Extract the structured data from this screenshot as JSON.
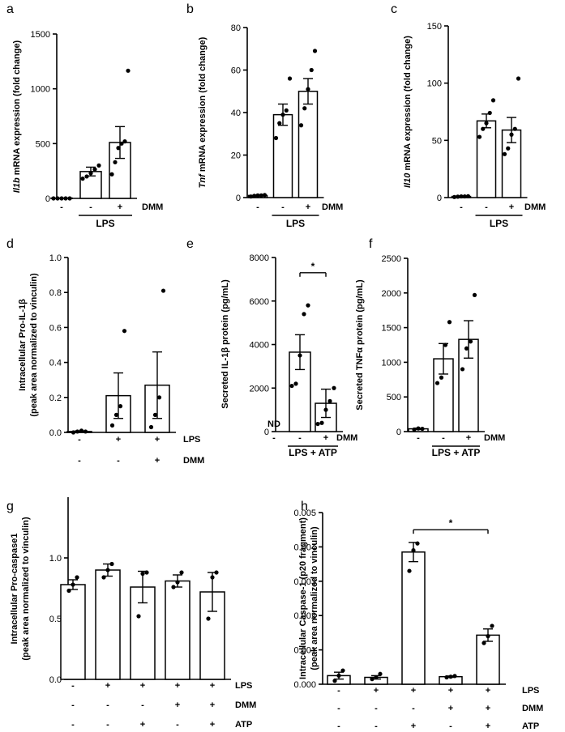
{
  "chart_data": [
    {
      "id": "a",
      "panel_label": "a",
      "type": "bar",
      "ylabel_italic": "Il1b",
      "ylabel_rest": " mRNA expression (fold change)",
      "ylim": [
        0,
        1500
      ],
      "yticks": [
        "0",
        "500",
        "1000",
        "1500"
      ],
      "ytick_values": [
        0,
        500,
        1000,
        1500
      ],
      "condition_rows": [
        {
          "label": "DMM",
          "marks": [
            "-",
            "-",
            "+"
          ]
        }
      ],
      "group_label": {
        "text": "LPS",
        "from": 1,
        "to": 2
      },
      "bars": [
        {
          "mean": 3,
          "sem": 0,
          "points": [
            0,
            0,
            0,
            0,
            0
          ]
        },
        {
          "mean": 245,
          "sem": 40,
          "points": [
            180,
            200,
            230,
            265,
            300
          ]
        },
        {
          "mean": 510,
          "sem": 145,
          "points": [
            220,
            330,
            460,
            500,
            520,
            1165
          ]
        }
      ]
    },
    {
      "id": "b",
      "panel_label": "b",
      "type": "bar",
      "ylabel_italic": "Tnf",
      "ylabel_rest": " mRNA expression (fold change)",
      "ylim": [
        0,
        80
      ],
      "yticks": [
        "0",
        "20",
        "40",
        "60",
        "80"
      ],
      "ytick_values": [
        0,
        20,
        40,
        60,
        80
      ],
      "condition_rows": [
        {
          "label": "DMM",
          "marks": [
            "-",
            "-",
            "+"
          ]
        }
      ],
      "group_label": {
        "text": "LPS",
        "from": 1,
        "to": 2
      },
      "bars": [
        {
          "mean": 1,
          "sem": 0.2,
          "points": [
            0.5,
            0.8,
            1,
            1,
            1.2
          ]
        },
        {
          "mean": 39,
          "sem": 5,
          "points": [
            28,
            35,
            39,
            41,
            56
          ]
        },
        {
          "mean": 50,
          "sem": 6,
          "points": [
            34,
            42,
            51,
            60,
            69
          ]
        }
      ]
    },
    {
      "id": "c",
      "panel_label": "c",
      "type": "bar",
      "ylabel_italic": "Il10",
      "ylabel_rest": " mRNA expression (fold change)",
      "ylim": [
        0,
        150
      ],
      "yticks": [
        "0",
        "50",
        "100",
        "150"
      ],
      "ytick_values": [
        0,
        50,
        100,
        150
      ],
      "condition_rows": [
        {
          "label": "DMM",
          "marks": [
            "-",
            "-",
            "+"
          ]
        }
      ],
      "group_label": {
        "text": "LPS",
        "from": 1,
        "to": 2
      },
      "bars": [
        {
          "mean": 1,
          "sem": 0.2,
          "points": [
            0.5,
            0.8,
            1,
            1,
            1.2
          ]
        },
        {
          "mean": 67,
          "sem": 6,
          "points": [
            53,
            60,
            65,
            74,
            85
          ]
        },
        {
          "mean": 59,
          "sem": 11,
          "points": [
            38,
            43,
            55,
            60,
            104
          ]
        }
      ]
    },
    {
      "id": "d",
      "panel_label": "d",
      "type": "bar",
      "ylabel_lines": [
        "Intracellular Pro-IL-1β",
        "(peak area normalized to vinculin)"
      ],
      "ylim": [
        0,
        1.0
      ],
      "yticks": [
        "0.0",
        "0.2",
        "0.4",
        "0.6",
        "0.8",
        "1.0"
      ],
      "ytick_values": [
        0,
        0.2,
        0.4,
        0.6,
        0.8,
        1.0
      ],
      "condition_rows": [
        {
          "label": "LPS",
          "marks": [
            "-",
            "+",
            "+"
          ]
        },
        {
          "label": "DMM",
          "marks": [
            "-",
            "-",
            "+"
          ]
        }
      ],
      "bars": [
        {
          "mean": 0.005,
          "sem": 0.003,
          "points": [
            0,
            0.005,
            0.01,
            0.005
          ]
        },
        {
          "mean": 0.21,
          "sem": 0.13,
          "points": [
            0.04,
            0.1,
            0.15,
            0.58
          ]
        },
        {
          "mean": 0.27,
          "sem": 0.19,
          "points": [
            0.03,
            0.1,
            0.2,
            0.81
          ]
        }
      ]
    },
    {
      "id": "e",
      "panel_label": "e",
      "type": "bar",
      "ylabel": "Secreted IL-1β protein (pg/mL)",
      "ylim": [
        0,
        8000
      ],
      "yticks": [
        "0",
        "2000",
        "4000",
        "6000",
        "8000"
      ],
      "ytick_values": [
        0,
        2000,
        4000,
        6000,
        8000
      ],
      "condition_rows": [
        {
          "label": "DMM",
          "marks": [
            "-",
            "-",
            "+"
          ]
        }
      ],
      "group_label": {
        "text": "LPS + ATP",
        "from": 1,
        "to": 2
      },
      "nd_label": "ND",
      "significance": {
        "from": 1,
        "to": 2,
        "y": 7300,
        "label": "*"
      },
      "bars": [
        {
          "mean": null,
          "sem": null,
          "points": []
        },
        {
          "mean": 3650,
          "sem": 800,
          "points": [
            2100,
            2200,
            3500,
            5400,
            5800
          ]
        },
        {
          "mean": 1300,
          "sem": 650,
          "points": [
            350,
            400,
            1000,
            1400,
            2000
          ]
        }
      ]
    },
    {
      "id": "f",
      "panel_label": "f",
      "type": "bar",
      "ylabel": "Secreted TNFα protein (pg/mL)",
      "ylim": [
        0,
        2500
      ],
      "yticks": [
        "0",
        "500",
        "1000",
        "1500",
        "2000",
        "2500"
      ],
      "ytick_values": [
        0,
        500,
        1000,
        1500,
        2000,
        2500
      ],
      "condition_rows": [
        {
          "label": "DMM",
          "marks": [
            "-",
            "-",
            "+"
          ]
        }
      ],
      "group_label": {
        "text": "LPS + ATP",
        "from": 1,
        "to": 2
      },
      "bars": [
        {
          "mean": 40,
          "sem": 10,
          "points": [
            30,
            45,
            40
          ]
        },
        {
          "mean": 1050,
          "sem": 220,
          "points": [
            700,
            780,
            1250,
            1580
          ]
        },
        {
          "mean": 1330,
          "sem": 270,
          "points": [
            900,
            1200,
            1300,
            1970
          ]
        }
      ]
    },
    {
      "id": "g",
      "panel_label": "g",
      "type": "bar",
      "ylabel_lines": [
        "Intracellular Pro-caspase1",
        "(peak area normalized to vinculin)"
      ],
      "ylim": [
        0,
        1.5
      ],
      "yticks": [
        "0.0",
        "0.5",
        "1.0"
      ],
      "ytick_values": [
        0,
        0.5,
        1.0
      ],
      "condition_rows": [
        {
          "label": "LPS",
          "marks": [
            "-",
            "+",
            "+",
            "+",
            "+"
          ]
        },
        {
          "label": "DMM",
          "marks": [
            "-",
            "-",
            "-",
            "+",
            "+"
          ]
        },
        {
          "label": "ATP",
          "marks": [
            "-",
            "-",
            "+",
            "-",
            "+"
          ]
        }
      ],
      "bars": [
        {
          "mean": 0.78,
          "sem": 0.04,
          "points": [
            0.73,
            0.78,
            0.84
          ]
        },
        {
          "mean": 0.9,
          "sem": 0.05,
          "points": [
            0.84,
            0.9,
            0.95
          ]
        },
        {
          "mean": 0.76,
          "sem": 0.13,
          "points": [
            0.52,
            0.87,
            0.88
          ]
        },
        {
          "mean": 0.81,
          "sem": 0.05,
          "points": [
            0.76,
            0.8,
            0.88
          ]
        },
        {
          "mean": 0.72,
          "sem": 0.16,
          "points": [
            0.5,
            0.84,
            0.88
          ]
        }
      ]
    },
    {
      "id": "h",
      "panel_label": "h",
      "type": "bar",
      "ylabel_lines": [
        "Intracellular Caspase-1 (p20 fragment)",
        "(peak area normalized to vinculin)"
      ],
      "ylim": [
        0,
        0.005
      ],
      "yticks": [
        "0.000",
        "0.001",
        "0.002",
        "0.003",
        "0.004",
        "0.005"
      ],
      "ytick_values": [
        0,
        0.001,
        0.002,
        0.003,
        0.004,
        0.005
      ],
      "condition_rows": [
        {
          "label": "LPS",
          "marks": [
            "-",
            "+",
            "+",
            "+",
            "+"
          ]
        },
        {
          "label": "DMM",
          "marks": [
            "-",
            "-",
            "-",
            "+",
            "+"
          ]
        },
        {
          "label": "ATP",
          "marks": [
            "-",
            "-",
            "+",
            "-",
            "+"
          ]
        }
      ],
      "significance": {
        "from": 2,
        "to": 4,
        "y": 0.0045,
        "label": "*"
      },
      "bars": [
        {
          "mean": 0.00025,
          "sem": 0.0001,
          "points": [
            0.0001,
            0.00025,
            0.0004
          ]
        },
        {
          "mean": 0.0002,
          "sem": 5e-05,
          "points": [
            0.00015,
            0.0002,
            0.0003
          ]
        },
        {
          "mean": 0.00385,
          "sem": 0.00028,
          "points": [
            0.0033,
            0.0039,
            0.0041
          ]
        },
        {
          "mean": 0.00022,
          "sem": 2e-05,
          "points": [
            0.0002,
            0.00022,
            0.00024
          ]
        },
        {
          "mean": 0.00143,
          "sem": 0.00018,
          "points": [
            0.0012,
            0.0014,
            0.0017
          ]
        }
      ]
    }
  ]
}
